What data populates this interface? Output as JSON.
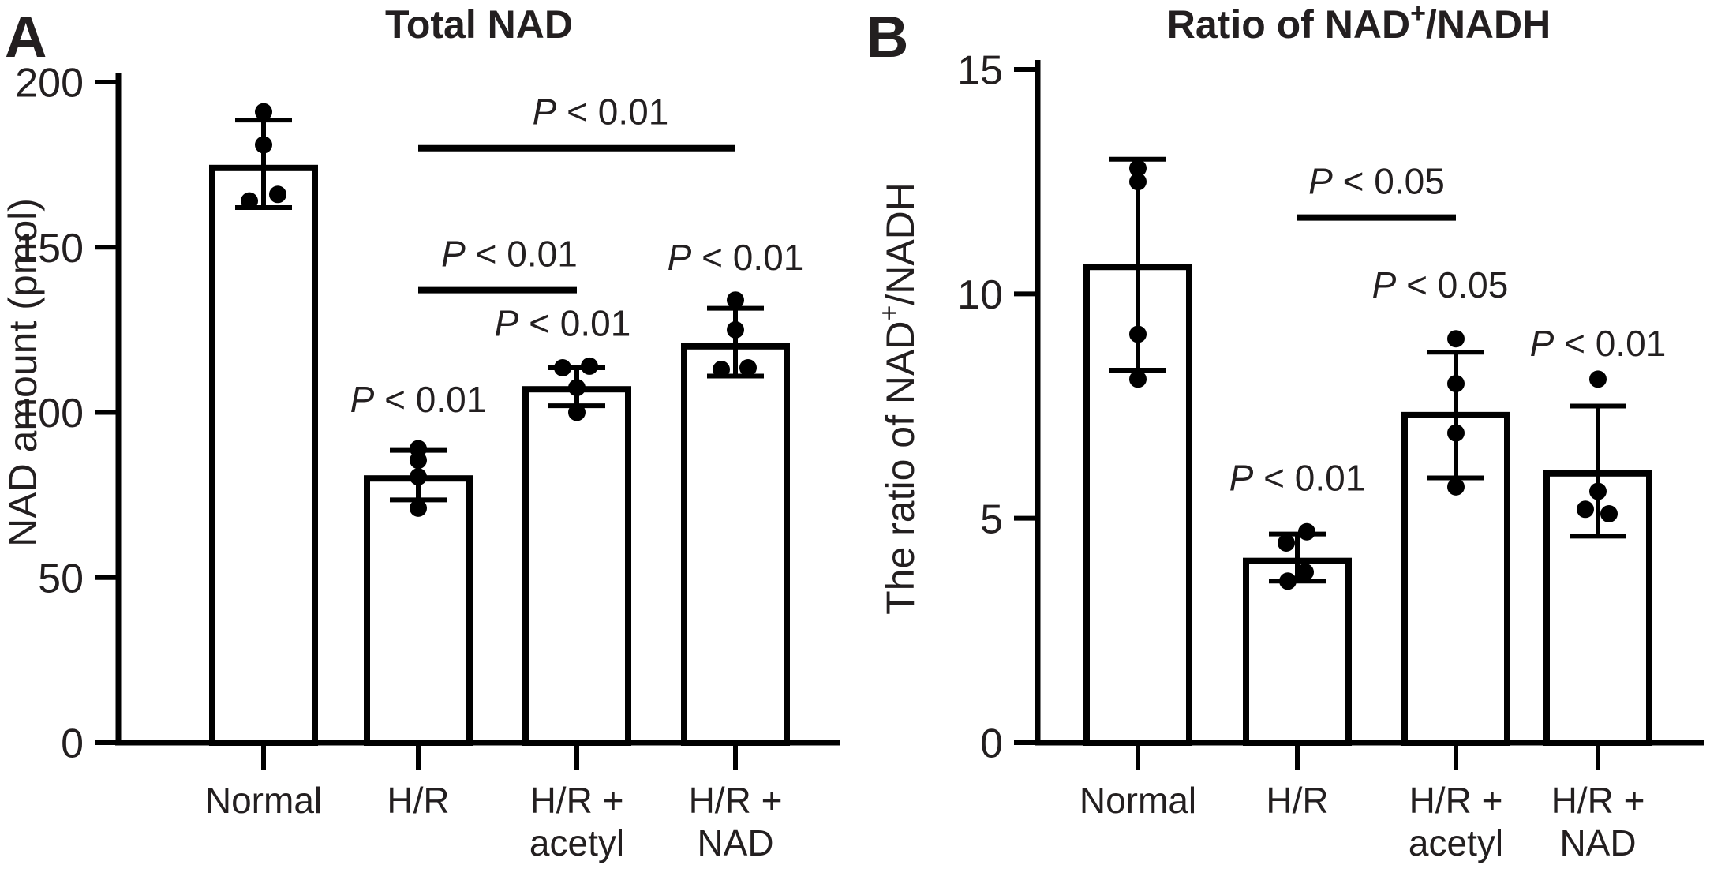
{
  "page": {
    "background": "#ffffff",
    "ink": "#231f20",
    "line_color": "#000000",
    "bar_fill": "#ffffff",
    "panel_letters": [
      "A",
      "B"
    ]
  },
  "chart_data": [
    {
      "type": "bar",
      "panel_letter": "A",
      "title": "Total NAD",
      "title_rich": [
        {
          "t": "Total NAD"
        }
      ],
      "ylabel": "NAD amount (pmol)",
      "ylabel_rich": [
        {
          "t": "NAD amount (pmol)"
        }
      ],
      "xlabel": "",
      "ylim": [
        0,
        200
      ],
      "yticks": [
        0,
        50,
        100,
        150,
        200
      ],
      "grid": false,
      "legend": false,
      "categories": [
        [
          "Normal"
        ],
        [
          "H/R"
        ],
        [
          "H/R +",
          "acetyl"
        ],
        [
          "H/R +",
          "NAD"
        ]
      ],
      "bars": [
        {
          "category": "Normal",
          "mean": 174,
          "err_low": 162,
          "err_high": 188.5,
          "points": [
            {
              "v": 191,
              "dx": 0
            },
            {
              "v": 181,
              "dx": 0
            },
            {
              "v": 166,
              "dx": 18
            },
            {
              "v": 164,
              "dx": -18
            }
          ]
        },
        {
          "category": "H/R",
          "mean": 80,
          "err_low": 73.5,
          "err_high": 88.5,
          "points": [
            {
              "v": 89,
              "dx": 0
            },
            {
              "v": 85.5,
              "dx": 0
            },
            {
              "v": 80.5,
              "dx": 0
            },
            {
              "v": 71,
              "dx": 0
            }
          ]
        },
        {
          "category": "H/R + acetyl",
          "mean": 107,
          "err_low": 102,
          "err_high": 113.5,
          "points": [
            {
              "v": 113.5,
              "dx": -18
            },
            {
              "v": 114,
              "dx": 16
            },
            {
              "v": 107.5,
              "dx": 0
            },
            {
              "v": 100,
              "dx": 0
            }
          ]
        },
        {
          "category": "H/R + NAD",
          "mean": 120,
          "err_low": 111,
          "err_high": 131.5,
          "points": [
            {
              "v": 134,
              "dx": 0
            },
            {
              "v": 125,
              "dx": 0
            },
            {
              "v": 113,
              "dx": -18
            },
            {
              "v": 113.5,
              "dx": 16
            }
          ]
        }
      ],
      "annotations": [
        {
          "text": "P < 0.01",
          "kind": "line",
          "from_cat": 1,
          "to_cat": 3,
          "y_value": 180,
          "text_dx": 30
        },
        {
          "text": "P < 0.01",
          "kind": "line",
          "from_cat": 1,
          "to_cat": 2,
          "y_value": 137,
          "text_dx": 15
        },
        {
          "text": "P < 0.01",
          "kind": "label",
          "cat": 2,
          "y_value": 127,
          "dx": -18
        },
        {
          "text": "P < 0.01",
          "kind": "label",
          "cat": 3,
          "y_value": 147,
          "dx": 0
        },
        {
          "text": "P < 0.01",
          "kind": "label",
          "cat": 1,
          "y_value": 104,
          "dx": 0
        }
      ]
    },
    {
      "type": "bar",
      "panel_letter": "B",
      "title": "Ratio of NAD+/NADH",
      "title_rich": [
        {
          "t": "Ratio of NAD"
        },
        {
          "t": "+",
          "sup": true
        },
        {
          "t": "/NADH"
        }
      ],
      "ylabel": "The ratio of NAD+/NADH",
      "ylabel_rich": [
        {
          "t": "The ratio of NAD"
        },
        {
          "t": "+",
          "sup": true
        },
        {
          "t": "/NADH"
        }
      ],
      "xlabel": "",
      "ylim": [
        0,
        15
      ],
      "yticks": [
        0,
        5,
        10,
        15
      ],
      "grid": false,
      "legend": false,
      "categories": [
        [
          "Normal"
        ],
        [
          "H/R"
        ],
        [
          "H/R +",
          "acetyl"
        ],
        [
          "H/R +",
          "NAD"
        ]
      ],
      "bars": [
        {
          "category": "Normal",
          "mean": 10.6,
          "err_low": 8.3,
          "err_high": 13.0,
          "points": [
            {
              "v": 12.8,
              "dx": 0
            },
            {
              "v": 12.5,
              "dx": 0
            },
            {
              "v": 9.1,
              "dx": 0
            },
            {
              "v": 8.1,
              "dx": 0
            }
          ]
        },
        {
          "category": "H/R",
          "mean": 4.05,
          "err_low": 3.6,
          "err_high": 4.65,
          "points": [
            {
              "v": 4.7,
              "dx": 12
            },
            {
              "v": 4.45,
              "dx": -14
            },
            {
              "v": 3.8,
              "dx": 10
            },
            {
              "v": 3.6,
              "dx": -12
            }
          ]
        },
        {
          "category": "H/R + acetyl",
          "mean": 7.3,
          "err_low": 5.9,
          "err_high": 8.7,
          "points": [
            {
              "v": 9.0,
              "dx": 0
            },
            {
              "v": 8.0,
              "dx": 0
            },
            {
              "v": 6.9,
              "dx": 0
            },
            {
              "v": 5.7,
              "dx": 0
            }
          ]
        },
        {
          "category": "H/R + NAD",
          "mean": 6.0,
          "err_low": 4.6,
          "err_high": 7.5,
          "points": [
            {
              "v": 8.1,
              "dx": 0
            },
            {
              "v": 5.6,
              "dx": 0
            },
            {
              "v": 5.2,
              "dx": -16
            },
            {
              "v": 5.1,
              "dx": 14
            }
          ]
        }
      ],
      "annotations": [
        {
          "text": "P < 0.05",
          "kind": "line",
          "from_cat": 1,
          "to_cat": 2,
          "y_value": 11.7,
          "text_dx": 0
        },
        {
          "text": "P < 0.05",
          "kind": "label",
          "cat": 2,
          "y_value": 10.2,
          "dx": -20
        },
        {
          "text": "P < 0.01",
          "kind": "label",
          "cat": 3,
          "y_value": 8.9,
          "dx": 0
        },
        {
          "text": "P < 0.01",
          "kind": "label",
          "cat": 1,
          "y_value": 5.9,
          "dx": 0
        }
      ]
    }
  ]
}
